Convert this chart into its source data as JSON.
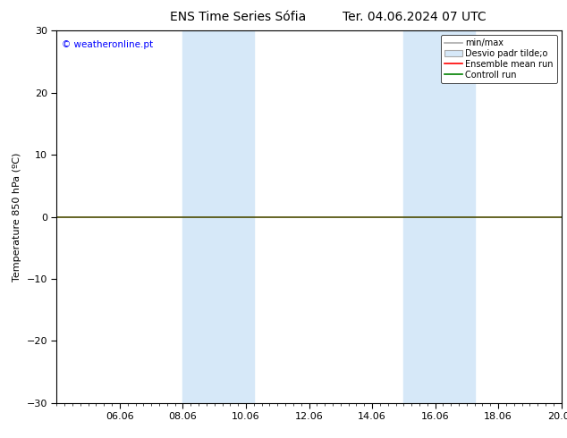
{
  "title_left": "ENS Time Series Sófia",
  "title_right": "Ter. 04.06.2024 07 UTC",
  "ylabel": "Temperature 850 hPa (ºC)",
  "ylim": [
    -30,
    30
  ],
  "yticks": [
    -30,
    -20,
    -10,
    0,
    10,
    20,
    30
  ],
  "xtick_labels": [
    "06.06",
    "08.06",
    "10.06",
    "12.06",
    "14.06",
    "16.06",
    "18.06",
    "20.06"
  ],
  "xtick_positions_days": [
    2,
    4,
    6,
    8,
    10,
    12,
    14,
    16
  ],
  "shaded_bands": [
    {
      "start_day": 4,
      "end_day": 6.25
    },
    {
      "start_day": 11,
      "end_day": 13.25
    }
  ],
  "copyright_text": "© weatheronline.pt",
  "copyright_color": "#0000ff",
  "background_color": "#ffffff",
  "plot_bg_color": "#ffffff",
  "zero_line_color": "#4a4a00",
  "band_color": "#d6e8f8",
  "legend_labels": [
    "min/max",
    "Desvio padr tilde;o",
    "Ensemble mean run",
    "Controll run"
  ],
  "legend_line_colors": [
    "#aaaaaa",
    "#cccccc",
    "#ff0000",
    "#008000"
  ],
  "title_fontsize": 10,
  "axis_label_fontsize": 8,
  "tick_fontsize": 8,
  "legend_fontsize": 7
}
